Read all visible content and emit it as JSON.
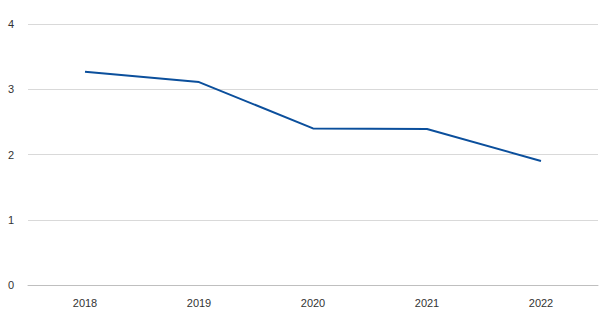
{
  "chart_data": {
    "type": "line",
    "categories": [
      "2018",
      "2019",
      "2020",
      "2021",
      "2022"
    ],
    "values": [
      3.27,
      3.11,
      2.4,
      2.39,
      1.9
    ],
    "color": "#0b4f9c",
    "ylim": [
      0,
      4
    ],
    "yticks": [
      0,
      1,
      2,
      3,
      4
    ],
    "grid": true
  }
}
